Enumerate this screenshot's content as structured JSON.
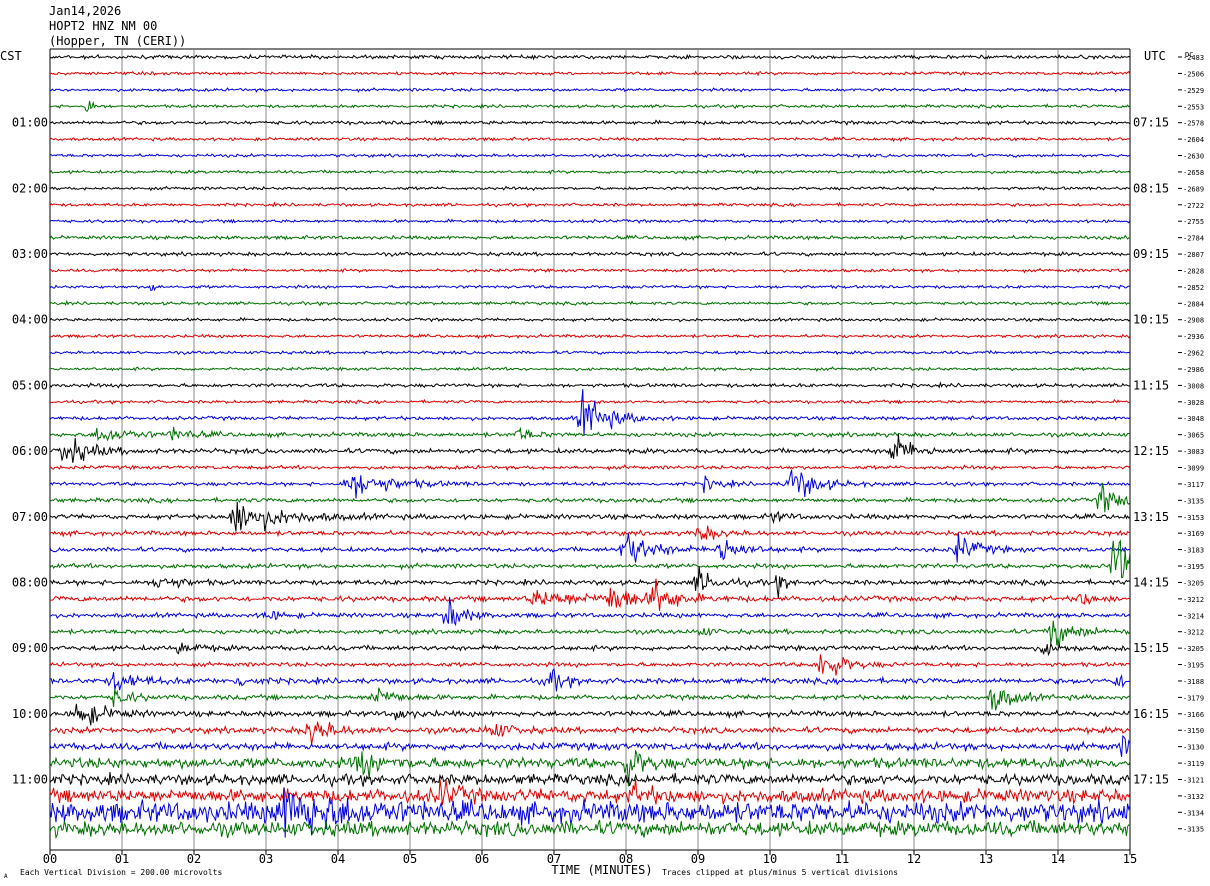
{
  "header": {
    "date": "Jan14,2026",
    "station": "HOPT2 HNZ NM 00",
    "location": "(Hopper, TN (CERI))"
  },
  "axes": {
    "left_label": "CST",
    "right_label": "UTC",
    "dc_label": "DC",
    "xlabel": "TIME (MINUTES)",
    "footer_left": "Each Vertical Division =  200.00 microvolts",
    "footer_right": "Traces clipped at plus/minus 5 vertical divisions",
    "corner_mark": "A"
  },
  "colors": {
    "trace_cycle": [
      "#000000",
      "#e00000",
      "#0000e0",
      "#007000"
    ],
    "grid": "#888888"
  },
  "chart_data": {
    "type": "line",
    "title": "",
    "xlim": [
      0,
      15
    ],
    "x_ticks": [
      "00",
      "01",
      "02",
      "03",
      "04",
      "05",
      "06",
      "07",
      "08",
      "09",
      "10",
      "11",
      "12",
      "13",
      "14",
      "15"
    ],
    "trace_interval_minutes": 15,
    "trace_count": 48,
    "left_hour_labels": [
      "01:00",
      "02:00",
      "03:00",
      "04:00",
      "05:00",
      "06:00",
      "07:00",
      "08:00",
      "09:00",
      "10:00",
      "11:00"
    ],
    "right_hour_labels": [
      "07:15",
      "08:15",
      "09:15",
      "10:15",
      "11:15",
      "12:15",
      "13:15",
      "14:15",
      "15:15",
      "16:15",
      "17:15"
    ],
    "dc_offsets": [
      "-2483",
      "-2506",
      "-2529",
      "-2553",
      "-2578",
      "-2604",
      "-2630",
      "-2658",
      "-2689",
      "-2722",
      "-2755",
      "-2784",
      "-2807",
      "-2828",
      "-2852",
      "-2884",
      "-2908",
      "-2936",
      "-2962",
      "-2986",
      "-3008",
      "-3028",
      "-3048",
      "-3065",
      "-3083",
      "-3099",
      "-3117",
      "-3135",
      "-3153",
      "-3169",
      "-3183",
      "-3195",
      "-3205",
      "-3212",
      "-3214",
      "-3212",
      "-3205",
      "-3195",
      "-3188",
      "-3179",
      "-3166",
      "-3150",
      "-3130",
      "-3119",
      "-3121",
      "-3132",
      "-3134",
      "-3135"
    ],
    "noise_amplitude": [
      1.2,
      1.0,
      1.0,
      1.0,
      1.2,
      1.0,
      1.0,
      1.0,
      1.0,
      1.0,
      1.0,
      1.2,
      1.2,
      1.0,
      1.0,
      1.0,
      1.0,
      1.0,
      1.0,
      1.0,
      1.2,
      1.0,
      1.2,
      1.4,
      1.6,
      1.2,
      1.2,
      1.4,
      1.6,
      1.5,
      1.5,
      1.5,
      1.6,
      1.8,
      1.5,
      1.5,
      1.6,
      1.4,
      1.8,
      1.6,
      1.8,
      2.0,
      2.4,
      3.5,
      3.5,
      4.5,
      7.0,
      5.0
    ],
    "events": [
      {
        "trace": 3,
        "minute": 0.5,
        "amplitude": 14,
        "duration": 0.08
      },
      {
        "trace": 14,
        "minute": 1.4,
        "amplitude": 6,
        "duration": 0.08
      },
      {
        "trace": 22,
        "minute": 7.4,
        "amplitude": 18,
        "duration": 0.5
      },
      {
        "trace": 23,
        "minute": 0.7,
        "amplitude": 6,
        "duration": 0.6
      },
      {
        "trace": 23,
        "minute": 1.7,
        "amplitude": 4,
        "duration": 0.4
      },
      {
        "trace": 23,
        "minute": 6.5,
        "amplitude": 5,
        "duration": 0.3
      },
      {
        "trace": 24,
        "minute": 0.2,
        "amplitude": 11,
        "duration": 0.5
      },
      {
        "trace": 24,
        "minute": 11.7,
        "amplitude": 12,
        "duration": 0.4
      },
      {
        "trace": 26,
        "minute": 4.2,
        "amplitude": 10,
        "duration": 0.8
      },
      {
        "trace": 26,
        "minute": 9.1,
        "amplitude": 5,
        "duration": 0.3
      },
      {
        "trace": 26,
        "minute": 10.3,
        "amplitude": 13,
        "duration": 0.5
      },
      {
        "trace": 27,
        "minute": 14.6,
        "amplitude": 11,
        "duration": 0.4
      },
      {
        "trace": 28,
        "minute": 2.6,
        "amplitude": 12,
        "duration": 0.9
      },
      {
        "trace": 28,
        "minute": 10.0,
        "amplitude": 4,
        "duration": 0.3
      },
      {
        "trace": 29,
        "minute": 9.0,
        "amplitude": 6,
        "duration": 0.4
      },
      {
        "trace": 30,
        "minute": 8.0,
        "amplitude": 14,
        "duration": 0.5
      },
      {
        "trace": 30,
        "minute": 9.3,
        "amplitude": 11,
        "duration": 0.4
      },
      {
        "trace": 30,
        "minute": 12.6,
        "amplitude": 10,
        "duration": 0.4
      },
      {
        "trace": 31,
        "minute": 14.8,
        "amplitude": 26,
        "duration": 0.5
      },
      {
        "trace": 32,
        "minute": 1.5,
        "amplitude": 6,
        "duration": 0.4
      },
      {
        "trace": 32,
        "minute": 9.0,
        "amplitude": 9,
        "duration": 0.4
      },
      {
        "trace": 32,
        "minute": 10.1,
        "amplitude": 7,
        "duration": 0.2
      },
      {
        "trace": 33,
        "minute": 6.8,
        "amplitude": 5,
        "duration": 1.2
      },
      {
        "trace": 33,
        "minute": 7.8,
        "amplitude": 11,
        "duration": 0.4
      },
      {
        "trace": 33,
        "minute": 8.4,
        "amplitude": 12,
        "duration": 0.4
      },
      {
        "trace": 33,
        "minute": 14.3,
        "amplitude": 5,
        "duration": 0.3
      },
      {
        "trace": 34,
        "minute": 5.5,
        "amplitude": 15,
        "duration": 0.3
      },
      {
        "trace": 34,
        "minute": 3.0,
        "amplitude": 4,
        "duration": 0.3
      },
      {
        "trace": 35,
        "minute": 13.9,
        "amplitude": 11,
        "duration": 0.5
      },
      {
        "trace": 35,
        "minute": 9.0,
        "amplitude": 5,
        "duration": 0.2
      },
      {
        "trace": 36,
        "minute": 1.8,
        "amplitude": 4,
        "duration": 0.4
      },
      {
        "trace": 36,
        "minute": 13.8,
        "amplitude": 5,
        "duration": 0.3
      },
      {
        "trace": 37,
        "minute": 10.7,
        "amplitude": 14,
        "duration": 0.4
      },
      {
        "trace": 38,
        "minute": 0.9,
        "amplitude": 7,
        "duration": 0.5
      },
      {
        "trace": 38,
        "minute": 6.9,
        "amplitude": 10,
        "duration": 0.3
      },
      {
        "trace": 38,
        "minute": 14.8,
        "amplitude": 6,
        "duration": 0.2
      },
      {
        "trace": 38,
        "minute": 2.6,
        "amplitude": 4,
        "duration": 0.3
      },
      {
        "trace": 39,
        "minute": 0.9,
        "amplitude": 7,
        "duration": 0.3
      },
      {
        "trace": 39,
        "minute": 4.5,
        "amplitude": 8,
        "duration": 0.4
      },
      {
        "trace": 39,
        "minute": 13.1,
        "amplitude": 10,
        "duration": 0.4
      },
      {
        "trace": 40,
        "minute": 0.4,
        "amplitude": 10,
        "duration": 0.5
      },
      {
        "trace": 40,
        "minute": 4.8,
        "amplitude": 4,
        "duration": 0.3
      },
      {
        "trace": 41,
        "minute": 3.6,
        "amplitude": 11,
        "duration": 0.4
      },
      {
        "trace": 41,
        "minute": 6.1,
        "amplitude": 9,
        "duration": 0.3
      },
      {
        "trace": 42,
        "minute": 14.9,
        "amplitude": 6,
        "duration": 0.3
      },
      {
        "trace": 43,
        "minute": 8.0,
        "amplitude": 14,
        "duration": 0.3
      },
      {
        "trace": 43,
        "minute": 4.3,
        "amplitude": 8,
        "duration": 0.5
      },
      {
        "trace": 45,
        "minute": 5.4,
        "amplitude": 10,
        "duration": 0.3
      },
      {
        "trace": 45,
        "minute": 8.1,
        "amplitude": 8,
        "duration": 0.3
      },
      {
        "trace": 46,
        "minute": 3.3,
        "amplitude": 16,
        "duration": 1.0
      }
    ]
  }
}
